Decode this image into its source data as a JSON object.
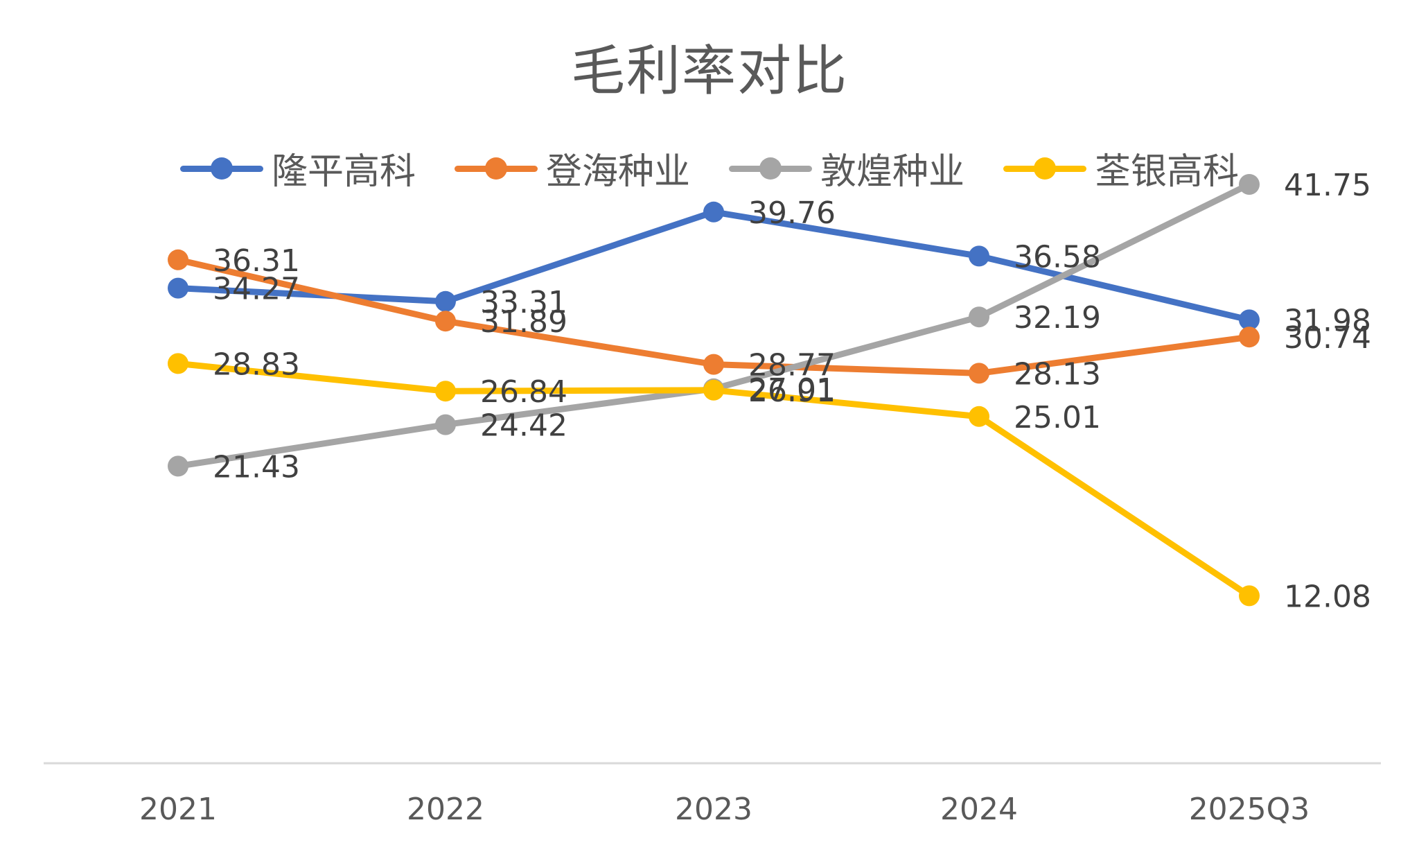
{
  "chart_data": {
    "type": "line",
    "title": "毛利率对比",
    "categories": [
      "2021",
      "2022",
      "2023",
      "2024",
      "2025Q3"
    ],
    "series": [
      {
        "name": "隆平高科",
        "color": "#4472C4",
        "values": [
          34.27,
          33.31,
          39.76,
          36.58,
          31.98
        ],
        "labels": [
          "34.27",
          "33.31",
          "39.76",
          "36.58",
          "31.98"
        ]
      },
      {
        "name": "登海种业",
        "color": "#ED7D31",
        "values": [
          36.31,
          31.89,
          28.77,
          28.13,
          30.74
        ],
        "labels": [
          "36.31",
          "31.89",
          "28.77",
          "28.13",
          "30.74"
        ]
      },
      {
        "name": "敦煌种业",
        "color": "#A5A5A5",
        "values": [
          21.43,
          24.42,
          27.01,
          32.19,
          41.75
        ],
        "labels": [
          "21.43",
          "24.42",
          "27.01",
          "32.19",
          "41.75"
        ]
      },
      {
        "name": "荃银高科",
        "color": "#FFC000",
        "values": [
          28.83,
          26.84,
          26.91,
          25.01,
          12.08
        ],
        "labels": [
          "28.83",
          "26.84",
          "26.91",
          "25.01",
          "12.08"
        ]
      }
    ],
    "ylim": [
      0,
      45
    ],
    "grid": false,
    "legend_position": "top"
  }
}
